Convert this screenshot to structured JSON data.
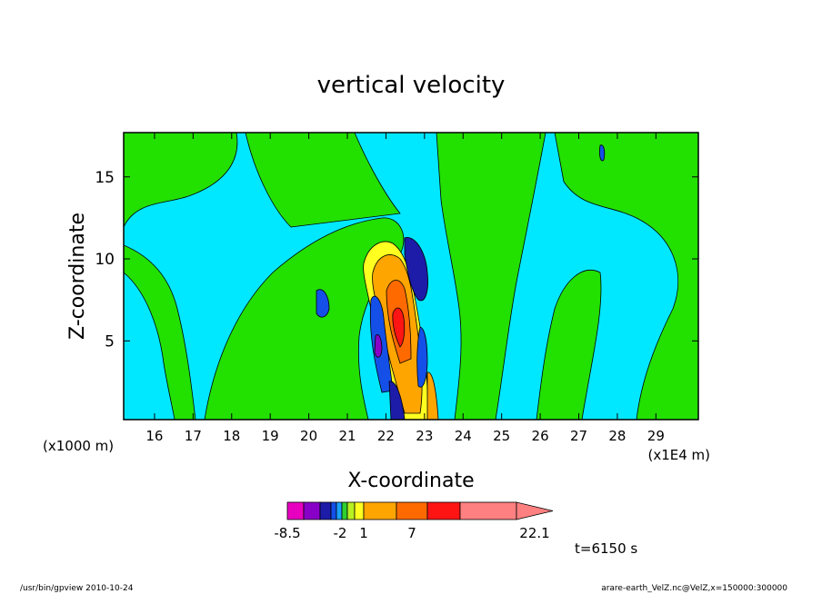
{
  "chart_data": {
    "type": "heatmap",
    "title": "vertical velocity",
    "xlabel": "X-coordinate",
    "ylabel": "Z-coordinate",
    "x_unit_left": "(x1000 m)",
    "x_unit_right": "(x1E4 m)",
    "xlim": [
      15.2,
      30.1
    ],
    "ylim": [
      0.2,
      17.7
    ],
    "x_ticks": [
      "16",
      "17",
      "18",
      "19",
      "20",
      "21",
      "22",
      "23",
      "24",
      "25",
      "26",
      "27",
      "28",
      "29"
    ],
    "y_ticks": [
      "5",
      "10",
      "15"
    ],
    "colorbar": {
      "colors": [
        "#e800c0",
        "#8800c8",
        "#1c1ca8",
        "#1450e8",
        "#1aa0ff",
        "#2fd02f",
        "#b8f020",
        "#ffff20",
        "#ffa500",
        "#ff6a00",
        "#ff1414",
        "#ff8080"
      ],
      "tick_labels": [
        "-8.5",
        "-2",
        "1",
        "7",
        "22.1"
      ]
    },
    "background_levels": {
      "weak_downdraft_color": "#00e8ff",
      "weak_updraft_color": "#22e000"
    },
    "annotation": "t=6150 s"
  },
  "footer": {
    "left": "/usr/bin/gpview   2010-10-24",
    "right": "arare-earth_VelZ.nc@VelZ,x=150000:300000"
  }
}
